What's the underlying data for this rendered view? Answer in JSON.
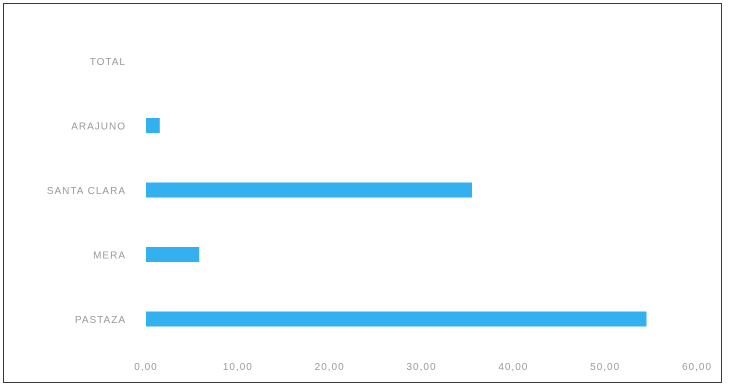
{
  "chart_data": {
    "type": "bar",
    "orientation": "horizontal",
    "title": "",
    "xlabel": "",
    "ylabel": "",
    "categories": [
      "TOTAL",
      "ARAJUNO",
      "SANTA CLARA",
      "MERA",
      "PASTAZA"
    ],
    "values": [
      0,
      1.5,
      35.5,
      5.8,
      54.5
    ],
    "xlim": [
      0,
      60
    ],
    "x_ticks": [
      "0,00",
      "10,00",
      "20,00",
      "30,00",
      "40,00",
      "50,00",
      "60,00"
    ],
    "grid": false,
    "legend": "none",
    "bar_color": "#33b0f0"
  }
}
